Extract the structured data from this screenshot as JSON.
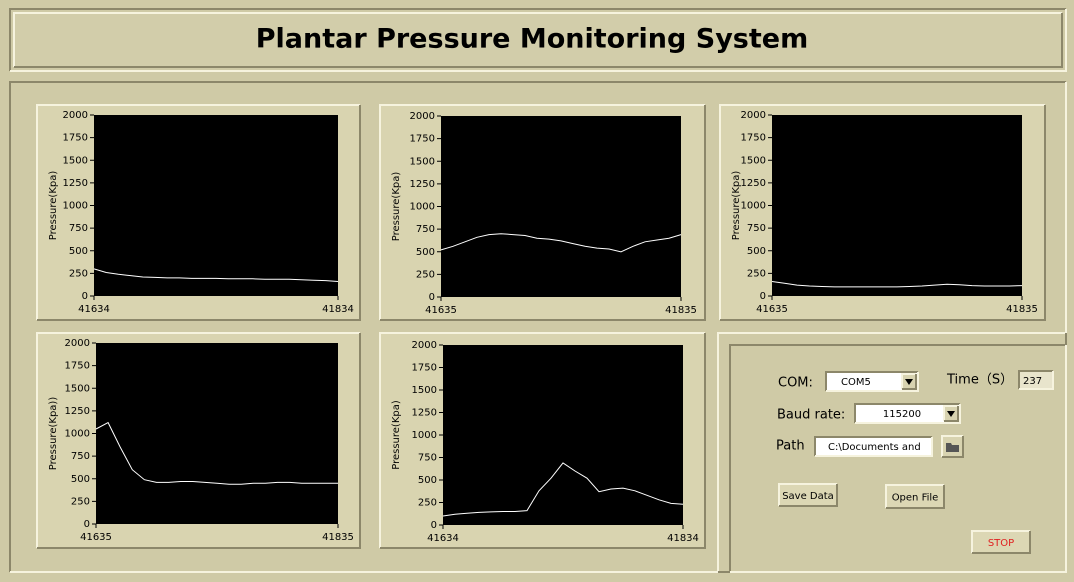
{
  "title": "Plantar Pressure Monitoring System",
  "chart_data": [
    {
      "type": "line",
      "y_label": "Pressure(Kpa)",
      "color": "#ffffff",
      "x": [
        41634,
        41644,
        41654,
        41664,
        41674,
        41684,
        41694,
        41704,
        41714,
        41724,
        41734,
        41744,
        41754,
        41764,
        41774,
        41784,
        41794,
        41804,
        41814,
        41824,
        41834
      ],
      "values": [
        300,
        260,
        240,
        225,
        210,
        205,
        200,
        200,
        195,
        195,
        195,
        190,
        190,
        190,
        185,
        185,
        185,
        180,
        175,
        170,
        160
      ],
      "xlim": [
        41634,
        41834
      ],
      "xticks": [
        41634,
        41834
      ],
      "ylim": [
        0,
        2000
      ],
      "yticks": [
        0,
        250,
        500,
        750,
        1000,
        1250,
        1500,
        1750,
        2000
      ]
    },
    {
      "type": "line",
      "y_label": "Pressure(Kpa)",
      "color": "#ffffff",
      "x": [
        41635,
        41645,
        41655,
        41665,
        41675,
        41685,
        41695,
        41705,
        41715,
        41725,
        41735,
        41745,
        41755,
        41765,
        41775,
        41785,
        41795,
        41805,
        41815,
        41825,
        41835
      ],
      "values": [
        520,
        560,
        610,
        660,
        690,
        700,
        690,
        680,
        650,
        640,
        620,
        590,
        560,
        540,
        530,
        500,
        560,
        610,
        630,
        650,
        690
      ],
      "xlim": [
        41635,
        41835
      ],
      "xticks": [
        41635,
        41835
      ],
      "ylim": [
        0,
        2000
      ],
      "yticks": [
        0,
        250,
        500,
        750,
        1000,
        1250,
        1500,
        1750,
        2000
      ]
    },
    {
      "type": "line",
      "y_label": "Pressure(Kpa)",
      "color": "#ffffff",
      "x": [
        41635,
        41645,
        41655,
        41665,
        41675,
        41685,
        41695,
        41705,
        41715,
        41725,
        41735,
        41745,
        41755,
        41765,
        41775,
        41785,
        41795,
        41805,
        41815,
        41825,
        41835
      ],
      "values": [
        160,
        140,
        120,
        110,
        105,
        100,
        100,
        100,
        100,
        100,
        100,
        105,
        110,
        120,
        130,
        125,
        115,
        110,
        110,
        110,
        115
      ],
      "xlim": [
        41635,
        41835
      ],
      "xticks": [
        41635,
        41835
      ],
      "ylim": [
        0,
        2000
      ],
      "yticks": [
        0,
        250,
        500,
        750,
        1000,
        1250,
        1500,
        1750,
        2000
      ]
    },
    {
      "type": "line",
      "y_label": "Pressure(Kpa))",
      "color": "#ffffff",
      "x": [
        41635,
        41645,
        41655,
        41665,
        41675,
        41685,
        41695,
        41705,
        41715,
        41725,
        41735,
        41745,
        41755,
        41765,
        41775,
        41785,
        41795,
        41805,
        41815,
        41825,
        41835
      ],
      "values": [
        1050,
        1120,
        850,
        600,
        490,
        460,
        460,
        470,
        470,
        460,
        450,
        440,
        440,
        450,
        450,
        460,
        460,
        450,
        450,
        450,
        450
      ],
      "xlim": [
        41635,
        41835
      ],
      "xticks": [
        41635,
        41835
      ],
      "ylim": [
        0,
        2000
      ],
      "yticks": [
        0,
        250,
        500,
        750,
        1000,
        1250,
        1500,
        1750,
        2000
      ]
    },
    {
      "type": "line",
      "y_label": "Pressure(Kpa)",
      "color": "#ffffff",
      "x": [
        41634,
        41644,
        41654,
        41664,
        41674,
        41684,
        41694,
        41704,
        41714,
        41724,
        41734,
        41744,
        41754,
        41764,
        41774,
        41784,
        41794,
        41804,
        41814,
        41824,
        41834
      ],
      "values": [
        100,
        120,
        130,
        140,
        145,
        150,
        150,
        160,
        380,
        520,
        690,
        600,
        520,
        370,
        400,
        410,
        380,
        330,
        280,
        240,
        230
      ],
      "xlim": [
        41634,
        41834
      ],
      "xticks": [
        41634,
        41834
      ],
      "ylim": [
        0,
        2000
      ],
      "yticks": [
        0,
        250,
        500,
        750,
        1000,
        1250,
        1500,
        1750,
        2000
      ]
    }
  ],
  "controls": {
    "com_label": "COM:",
    "com_value": "COM5",
    "time_label": "Time（S）",
    "time_value": 237,
    "baud_label": "Baud rate:",
    "baud_value": "115200",
    "path_label": "Path",
    "path_value": "C:\\Documents and",
    "save_button": "Save Data",
    "open_button": "Open File",
    "stop_button": "STOP"
  }
}
